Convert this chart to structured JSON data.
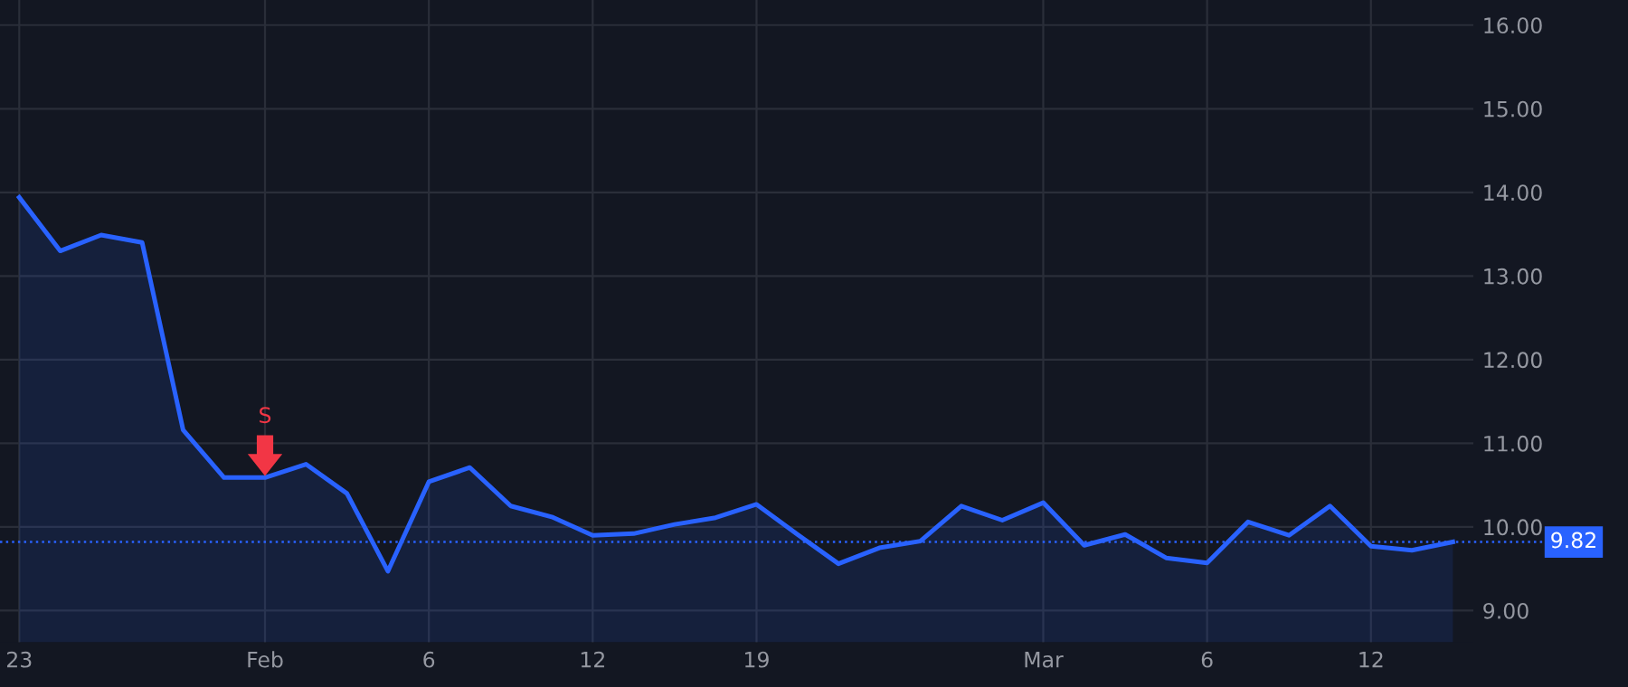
{
  "chart_data": {
    "type": "area",
    "categories": [
      "23",
      null,
      null,
      null,
      null,
      null,
      "Feb",
      null,
      null,
      null,
      "6",
      null,
      null,
      null,
      "12",
      null,
      null,
      null,
      "19",
      null,
      null,
      null,
      null,
      null,
      null,
      "Mar",
      null,
      null,
      null,
      "6",
      null,
      null,
      null,
      "12",
      null,
      null
    ],
    "series": [
      {
        "color": "#2962ff",
        "values": [
          13.94,
          13.3,
          13.49,
          13.4,
          11.16,
          10.59,
          10.59,
          10.75,
          10.4,
          9.47,
          10.54,
          10.71,
          10.25,
          10.12,
          9.9,
          9.92,
          10.03,
          10.11,
          10.27,
          9.91,
          9.56,
          9.75,
          9.83,
          10.25,
          10.08,
          10.29,
          9.78,
          9.91,
          9.63,
          9.57,
          10.06,
          9.9,
          10.25,
          9.77,
          9.72,
          9.82
        ]
      }
    ],
    "ylim": [
      8.62,
      16.3
    ],
    "yticks": [
      {
        "value": 9,
        "label": "9.00"
      },
      {
        "value": 10,
        "label": "10.00"
      },
      {
        "value": 11,
        "label": "11.00"
      },
      {
        "value": 12,
        "label": "12.00"
      },
      {
        "value": 13,
        "label": "13.00"
      },
      {
        "value": 14,
        "label": "14.00"
      },
      {
        "value": 15,
        "label": "15.00"
      },
      {
        "value": 16,
        "label": "16.00"
      }
    ],
    "grid": true,
    "ref_lines": [
      {
        "axis": "y",
        "value": 9.82,
        "label": "9.82",
        "color": "#2962ff",
        "line_style": "dotted"
      }
    ],
    "annotations": [
      {
        "text": "S",
        "x": "Feb",
        "y": 10.59
      }
    ]
  }
}
